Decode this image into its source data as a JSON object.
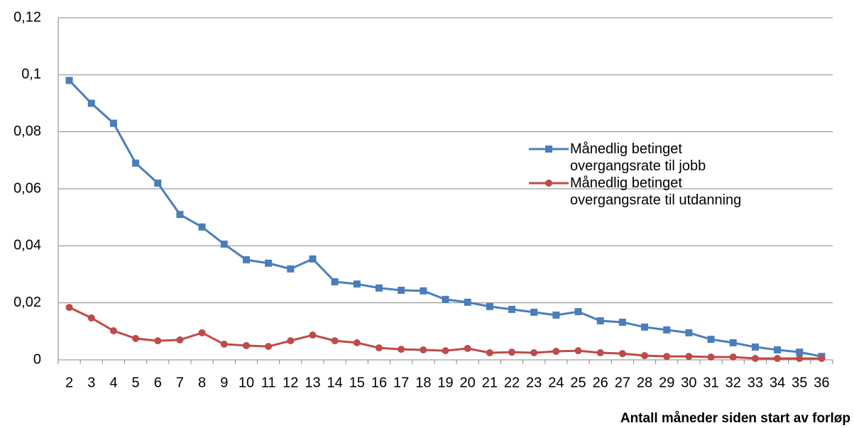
{
  "chart_data": {
    "type": "line",
    "x_label": "Antall måneder siden start av forløp",
    "categories": [
      "2",
      "3",
      "4",
      "5",
      "6",
      "7",
      "8",
      "9",
      "10",
      "11",
      "12",
      "13",
      "14",
      "15",
      "16",
      "17",
      "18",
      "19",
      "20",
      "21",
      "22",
      "23",
      "24",
      "25",
      "26",
      "27",
      "28",
      "29",
      "30",
      "31",
      "32",
      "33",
      "34",
      "35",
      "36"
    ],
    "series": [
      {
        "name": "Månedlig betinget overgangsrate til jobb",
        "color": "#4a7ebb",
        "marker": "square",
        "values": [
          0.098,
          0.09,
          0.083,
          0.069,
          0.062,
          0.051,
          0.0466,
          0.0406,
          0.0351,
          0.0339,
          0.0319,
          0.0354,
          0.0274,
          0.0266,
          0.0252,
          0.0244,
          0.0242,
          0.0212,
          0.0202,
          0.0187,
          0.0177,
          0.0167,
          0.0157,
          0.0169,
          0.0137,
          0.0132,
          0.0115,
          0.0105,
          0.0095,
          0.0072,
          0.006,
          0.0045,
          0.0035,
          0.0027,
          0.0012
        ]
      },
      {
        "name": "Månedlig betinget overgangsrate til utdanning",
        "color": "#be4b48",
        "marker": "circle",
        "values": [
          0.0184,
          0.0147,
          0.0102,
          0.0075,
          0.0067,
          0.007,
          0.0095,
          0.0055,
          0.005,
          0.0047,
          0.0067,
          0.0087,
          0.0067,
          0.006,
          0.0042,
          0.0037,
          0.0035,
          0.0032,
          0.004,
          0.0025,
          0.0027,
          0.0025,
          0.003,
          0.0032,
          0.0025,
          0.0022,
          0.0015,
          0.0012,
          0.0012,
          0.001,
          0.001,
          0.0005,
          0.0005,
          0.0005,
          0.0005
        ]
      }
    ],
    "ylim": [
      0,
      0.12
    ],
    "yticks": [
      0,
      {
        "value": 0.02,
        "label": "0,02"
      },
      {
        "value": 0.04,
        "label": "0,04"
      },
      {
        "value": 0.06,
        "label": "0,06"
      },
      {
        "value": 0.08,
        "label": "0,08"
      },
      {
        "value": 0.1,
        "label": "0,1"
      },
      {
        "value": 0.12,
        "label": "0,12"
      }
    ],
    "grid": true,
    "legend": "right"
  }
}
